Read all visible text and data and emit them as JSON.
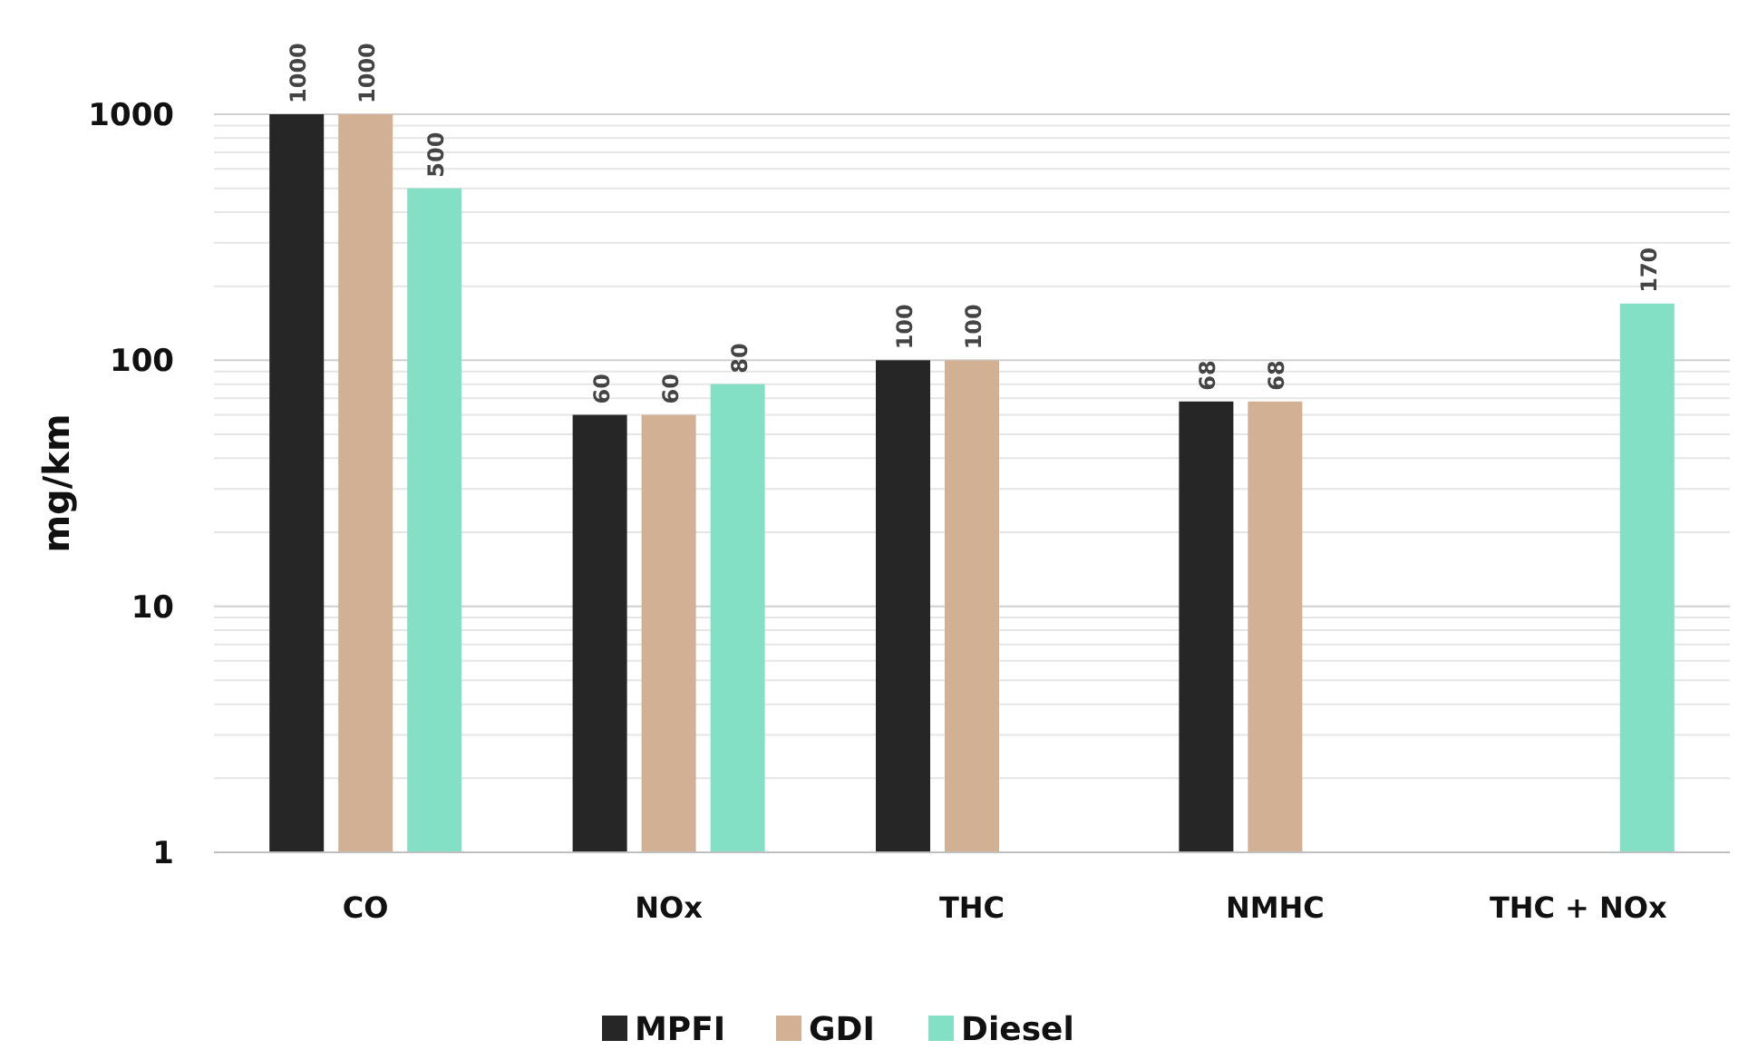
{
  "chart_data": {
    "type": "bar",
    "ylabel": "mg/km",
    "categories": [
      "CO",
      "NOx",
      "THC",
      "NMHC",
      "THC + NOx"
    ],
    "series": [
      {
        "name": "MPFI",
        "color": "#262626",
        "values": [
          1000,
          60,
          100,
          68,
          null
        ]
      },
      {
        "name": "GDI",
        "color": "#d2b093",
        "values": [
          1000,
          60,
          100,
          68,
          null
        ]
      },
      {
        "name": "Diesel",
        "color": "#84e0c4",
        "values": [
          500,
          80,
          null,
          null,
          170
        ]
      }
    ],
    "log": true,
    "ylim": [
      1,
      1000
    ],
    "yticks": [
      1,
      10,
      100,
      1000
    ],
    "grid": true,
    "data_labels": true,
    "legend": "bottom"
  }
}
